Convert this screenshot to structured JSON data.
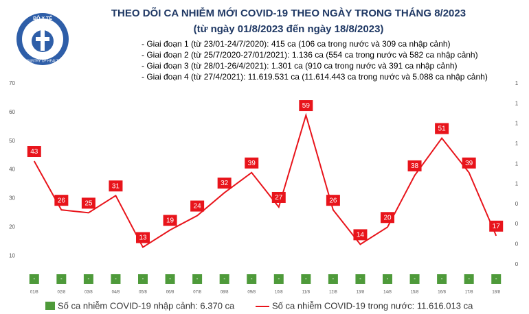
{
  "chart_data": {
    "type": "line",
    "title": "THEO DÕI CA NHIỄM MỚI COVID-19 THEO NGÀY TRONG THÁNG 8/2023",
    "subtitle": "(từ ngày 01/8/2023 đến ngày 18/8/2023)",
    "logo_text": [
      "BỘ Y TẾ",
      "MINISTRY OF HEALTH"
    ],
    "notes": [
      "- Giai đoạn 1 (từ 23/01-24/7/2020): 415 ca (106 ca trong nước và 309 ca nhập cảnh)",
      "- Giai đoạn 2 (từ 25/7/2020-27/01/2021): 1.136 ca (554 ca trong nước và 582 ca nhập cảnh)",
      "- Giai đoạn 3 (từ 28/01-26/4/2021): 1.301 ca (910 ca trong nước và 391 ca nhập cảnh)",
      "- Giai đoạn 4 (từ 27/4/2021): 11.619.531 ca (11.614.443 ca trong nước và 5.088 ca nhập cảnh)"
    ],
    "categories": [
      "01/8",
      "02/8",
      "03/8",
      "04/8",
      "05/8",
      "06/8",
      "07/8",
      "08/8",
      "09/8",
      "10/8",
      "11/8",
      "12/8",
      "13/8",
      "14/8",
      "15/8",
      "16/8",
      "17/8",
      "18/8"
    ],
    "series": [
      {
        "name": "Số ca nhiễm COVID-19 nhập cảnh: 6.370 ca",
        "type": "bar",
        "color": "#4e9a3a",
        "values": [
          0,
          0,
          0,
          0,
          0,
          0,
          0,
          0,
          0,
          0,
          0,
          0,
          0,
          0,
          0,
          0,
          0,
          0
        ],
        "value_labels": [
          "-",
          "-",
          "-",
          "-",
          "-",
          "-",
          "-",
          "-",
          "-",
          "-",
          "-",
          "-",
          "-",
          "-",
          "-",
          "-",
          "-",
          "-"
        ]
      },
      {
        "name": "Số ca nhiễm COVID-19 trong nước: 11.616.013 ca",
        "type": "line",
        "color": "#e8141b",
        "values": [
          43,
          26,
          25,
          31,
          13,
          19,
          24,
          32,
          39,
          27,
          59,
          26,
          14,
          20,
          38,
          51,
          39,
          17
        ]
      }
    ],
    "ylim": [
      0,
      70
    ],
    "yticks": [
      10,
      20,
      30,
      40,
      50,
      60,
      70
    ],
    "y2lim": [
      0,
      1
    ],
    "y2ticks": [
      {
        "value": 1.0,
        "label": "1"
      },
      {
        "value": 0.9,
        "label": "1"
      },
      {
        "value": 0.8,
        "label": "1"
      },
      {
        "value": 0.7,
        "label": "1"
      },
      {
        "value": 0.6,
        "label": "1"
      },
      {
        "value": 0.5,
        "label": "1"
      },
      {
        "value": 0.4,
        "label": "0"
      },
      {
        "value": 0.3,
        "label": "0"
      },
      {
        "value": 0.2,
        "label": "0"
      },
      {
        "value": 0.1,
        "label": "0"
      }
    ]
  }
}
